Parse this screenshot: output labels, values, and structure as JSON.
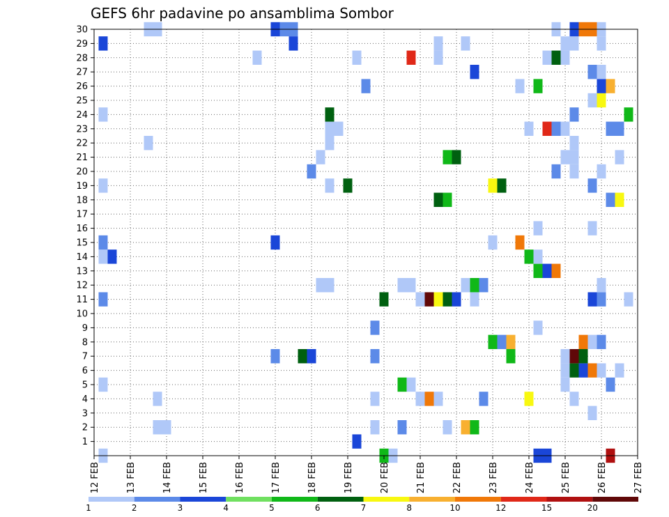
{
  "chart_data": {
    "type": "heatmap",
    "title": "GEFS 6hr padavine po ansamblima Sombor",
    "xlabel": "",
    "ylabel": "",
    "x_start": "12 FEB 00Z",
    "x_end": "27 FEB 00Z",
    "x_step_hours": 6,
    "x_tick_labels": [
      "12 FEB",
      "13 FEB",
      "14 FEB",
      "15 FEB",
      "16 FEB",
      "17 FEB",
      "18 FEB",
      "19 FEB",
      "20 FEB",
      "21 FEB",
      "22 FEB",
      "23 FEB",
      "24 FEB",
      "25 FEB",
      "26 FEB",
      "27 FEB"
    ],
    "y_tick_labels": [
      "1",
      "2",
      "3",
      "4",
      "5",
      "6",
      "7",
      "8",
      "9",
      "10",
      "11",
      "12",
      "13",
      "14",
      "15",
      "16",
      "17",
      "18",
      "19",
      "20",
      "21",
      "22",
      "23",
      "24",
      "25",
      "26",
      "27",
      "28",
      "29",
      "30"
    ],
    "ylim": [
      0,
      30
    ],
    "grid": true,
    "legend": {
      "placement": "bottom",
      "boundaries": [
        "1",
        "2",
        "3",
        "4",
        "5",
        "6",
        "7",
        "8",
        "10",
        "12",
        "15",
        "20"
      ],
      "colors": [
        "#b0c8f8",
        "#5c8ae8",
        "#1a46d8",
        "#70e060",
        "#10b818",
        "#006010",
        "#f8f810",
        "#f8b030",
        "#f07808",
        "#e02818",
        "#b01010",
        "#600808"
      ]
    },
    "cells": [
      [
        "12 FEB 06Z",
        0,
        1
      ],
      [
        "12 FEB 06Z",
        5,
        1
      ],
      [
        "12 FEB 06Z",
        11,
        2
      ],
      [
        "12 FEB 06Z",
        14,
        1
      ],
      [
        "12 FEB 06Z",
        15,
        2
      ],
      [
        "12 FEB 06Z",
        19,
        1
      ],
      [
        "12 FEB 06Z",
        24,
        1
      ],
      [
        "12 FEB 06Z",
        29,
        3
      ],
      [
        "12 FEB 12Z",
        14,
        3
      ],
      [
        "13 FEB 12Z",
        22,
        1
      ],
      [
        "13 FEB 12Z",
        30,
        1
      ],
      [
        "13 FEB 18Z",
        30,
        1
      ],
      [
        "13 FEB 18Z",
        2,
        1
      ],
      [
        "13 FEB 18Z",
        4,
        1
      ],
      [
        "14 FEB 00Z",
        2,
        1
      ],
      [
        "16 FEB 12Z",
        28,
        1
      ],
      [
        "17 FEB 00Z",
        30,
        3
      ],
      [
        "17 FEB 00Z",
        15,
        3
      ],
      [
        "17 FEB 00Z",
        7,
        2
      ],
      [
        "17 FEB 06Z",
        30,
        2
      ],
      [
        "17 FEB 12Z",
        30,
        2
      ],
      [
        "17 FEB 12Z",
        29,
        3
      ],
      [
        "17 FEB 18Z",
        7,
        6
      ],
      [
        "18 FEB 00Z",
        7,
        3
      ],
      [
        "18 FEB 00Z",
        20,
        2
      ],
      [
        "18 FEB 06Z",
        12,
        1
      ],
      [
        "18 FEB 06Z",
        21,
        1
      ],
      [
        "18 FEB 12Z",
        12,
        1
      ],
      [
        "18 FEB 12Z",
        19,
        1
      ],
      [
        "18 FEB 12Z",
        22,
        1
      ],
      [
        "18 FEB 12Z",
        23,
        1
      ],
      [
        "18 FEB 12Z",
        24,
        6
      ],
      [
        "18 FEB 18Z",
        23,
        1
      ],
      [
        "19 FEB 00Z",
        19,
        6
      ],
      [
        "19 FEB 06Z",
        1,
        3
      ],
      [
        "19 FEB 06Z",
        28,
        1
      ],
      [
        "19 FEB 12Z",
        26,
        2
      ],
      [
        "19 FEB 18Z",
        2,
        1
      ],
      [
        "19 FEB 18Z",
        4,
        1
      ],
      [
        "19 FEB 18Z",
        7,
        2
      ],
      [
        "19 FEB 18Z",
        9,
        2
      ],
      [
        "20 FEB 00Z",
        0,
        5
      ],
      [
        "20 FEB 00Z",
        11,
        6
      ],
      [
        "20 FEB 06Z",
        0,
        1
      ],
      [
        "20 FEB 12Z",
        2,
        2
      ],
      [
        "20 FEB 12Z",
        5,
        5
      ],
      [
        "20 FEB 12Z",
        12,
        1
      ],
      [
        "20 FEB 18Z",
        5,
        1
      ],
      [
        "20 FEB 18Z",
        12,
        1
      ],
      [
        "20 FEB 18Z",
        28,
        12
      ],
      [
        "21 FEB 00Z",
        4,
        1
      ],
      [
        "21 FEB 00Z",
        11,
        1
      ],
      [
        "21 FEB 06Z",
        4,
        10
      ],
      [
        "21 FEB 06Z",
        11,
        20
      ],
      [
        "21 FEB 12Z",
        4,
        1
      ],
      [
        "21 FEB 12Z",
        11,
        7
      ],
      [
        "21 FEB 12Z",
        18,
        6
      ],
      [
        "21 FEB 12Z",
        28,
        1
      ],
      [
        "21 FEB 12Z",
        29,
        1
      ],
      [
        "21 FEB 18Z",
        2,
        1
      ],
      [
        "21 FEB 18Z",
        11,
        6
      ],
      [
        "21 FEB 18Z",
        18,
        5
      ],
      [
        "21 FEB 18Z",
        21,
        5
      ],
      [
        "22 FEB 00Z",
        11,
        3
      ],
      [
        "22 FEB 00Z",
        21,
        6
      ],
      [
        "22 FEB 06Z",
        2,
        8
      ],
      [
        "22 FEB 06Z",
        12,
        1
      ],
      [
        "22 FEB 06Z",
        29,
        1
      ],
      [
        "22 FEB 12Z",
        2,
        5
      ],
      [
        "22 FEB 12Z",
        11,
        1
      ],
      [
        "22 FEB 12Z",
        12,
        5
      ],
      [
        "22 FEB 12Z",
        27,
        3
      ],
      [
        "22 FEB 18Z",
        4,
        2
      ],
      [
        "22 FEB 18Z",
        12,
        2
      ],
      [
        "23 FEB 00Z",
        8,
        5
      ],
      [
        "23 FEB 00Z",
        15,
        1
      ],
      [
        "23 FEB 00Z",
        19,
        7
      ],
      [
        "23 FEB 06Z",
        8,
        2
      ],
      [
        "23 FEB 06Z",
        19,
        6
      ],
      [
        "23 FEB 12Z",
        7,
        5
      ],
      [
        "23 FEB 12Z",
        8,
        8
      ],
      [
        "23 FEB 18Z",
        15,
        10
      ],
      [
        "23 FEB 18Z",
        26,
        1
      ],
      [
        "24 FEB 00Z",
        4,
        7
      ],
      [
        "24 FEB 00Z",
        14,
        5
      ],
      [
        "24 FEB 00Z",
        23,
        1
      ],
      [
        "24 FEB 06Z",
        0,
        3
      ],
      [
        "24 FEB 06Z",
        9,
        1
      ],
      [
        "24 FEB 06Z",
        13,
        5
      ],
      [
        "24 FEB 06Z",
        14,
        1
      ],
      [
        "24 FEB 06Z",
        16,
        1
      ],
      [
        "24 FEB 06Z",
        26,
        5
      ],
      [
        "24 FEB 12Z",
        0,
        3
      ],
      [
        "24 FEB 12Z",
        13,
        3
      ],
      [
        "24 FEB 12Z",
        23,
        12
      ],
      [
        "24 FEB 12Z",
        28,
        1
      ],
      [
        "24 FEB 18Z",
        13,
        10
      ],
      [
        "24 FEB 18Z",
        20,
        2
      ],
      [
        "24 FEB 18Z",
        23,
        2
      ],
      [
        "24 FEB 18Z",
        28,
        6
      ],
      [
        "24 FEB 18Z",
        30,
        1
      ],
      [
        "25 FEB 00Z",
        5,
        1
      ],
      [
        "25 FEB 00Z",
        6,
        1
      ],
      [
        "25 FEB 00Z",
        7,
        1
      ],
      [
        "25 FEB 00Z",
        21,
        1
      ],
      [
        "25 FEB 00Z",
        23,
        1
      ],
      [
        "25 FEB 00Z",
        28,
        1
      ],
      [
        "25 FEB 00Z",
        29,
        1
      ],
      [
        "25 FEB 06Z",
        4,
        1
      ],
      [
        "25 FEB 06Z",
        6,
        6
      ],
      [
        "25 FEB 06Z",
        7,
        20
      ],
      [
        "25 FEB 06Z",
        20,
        1
      ],
      [
        "25 FEB 06Z",
        21,
        1
      ],
      [
        "25 FEB 06Z",
        22,
        1
      ],
      [
        "25 FEB 06Z",
        24,
        2
      ],
      [
        "25 FEB 06Z",
        29,
        1
      ],
      [
        "25 FEB 06Z",
        30,
        3
      ],
      [
        "25 FEB 12Z",
        6,
        3
      ],
      [
        "25 FEB 12Z",
        7,
        6
      ],
      [
        "25 FEB 12Z",
        8,
        10
      ],
      [
        "25 FEB 12Z",
        30,
        10
      ],
      [
        "25 FEB 18Z",
        3,
        1
      ],
      [
        "25 FEB 18Z",
        6,
        10
      ],
      [
        "25 FEB 18Z",
        8,
        1
      ],
      [
        "25 FEB 18Z",
        11,
        3
      ],
      [
        "25 FEB 18Z",
        16,
        1
      ],
      [
        "25 FEB 18Z",
        19,
        2
      ],
      [
        "25 FEB 18Z",
        25,
        1
      ],
      [
        "25 FEB 18Z",
        27,
        2
      ],
      [
        "25 FEB 18Z",
        30,
        10
      ],
      [
        "26 FEB 00Z",
        6,
        1
      ],
      [
        "26 FEB 00Z",
        8,
        2
      ],
      [
        "26 FEB 00Z",
        11,
        2
      ],
      [
        "26 FEB 00Z",
        12,
        1
      ],
      [
        "26 FEB 00Z",
        20,
        1
      ],
      [
        "26 FEB 00Z",
        25,
        7
      ],
      [
        "26 FEB 00Z",
        26,
        3
      ],
      [
        "26 FEB 00Z",
        27,
        1
      ],
      [
        "26 FEB 00Z",
        29,
        1
      ],
      [
        "26 FEB 00Z",
        30,
        1
      ],
      [
        "26 FEB 06Z",
        0,
        15
      ],
      [
        "26 FEB 06Z",
        5,
        2
      ],
      [
        "26 FEB 06Z",
        18,
        2
      ],
      [
        "26 FEB 06Z",
        23,
        2
      ],
      [
        "26 FEB 06Z",
        26,
        8
      ],
      [
        "26 FEB 12Z",
        6,
        1
      ],
      [
        "26 FEB 12Z",
        18,
        7
      ],
      [
        "26 FEB 12Z",
        21,
        1
      ],
      [
        "26 FEB 12Z",
        23,
        2
      ],
      [
        "26 FEB 18Z",
        11,
        1
      ],
      [
        "26 FEB 18Z",
        24,
        5
      ]
    ]
  }
}
